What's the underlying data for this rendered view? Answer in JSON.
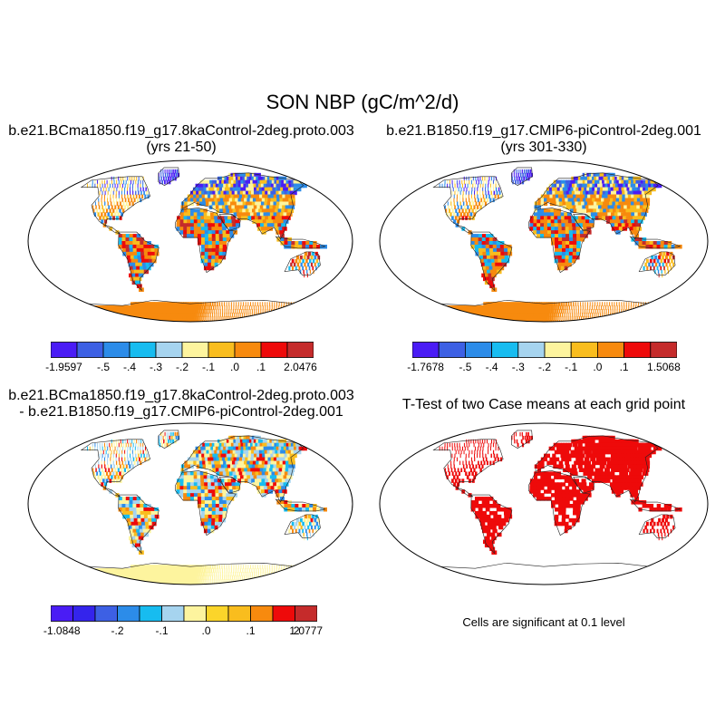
{
  "chart_data": {
    "type": "heatmap",
    "title": "SON NBP (gC/m^2/d)",
    "projection": "Robinson",
    "panels": [
      {
        "id": "case1",
        "title_lines": [
          "b.e21.BCma1850.f19_g17.8kaControl-2deg.proto.003",
          "(yrs 21-50)"
        ],
        "colorbar": {
          "colors": [
            "#4a1cf5",
            "#3d60e4",
            "#2c8ce9",
            "#17bcf0",
            "#a6d4ef",
            "#fdf49e",
            "#f9bd1e",
            "#f78a0e",
            "#ee0a0a",
            "#c52b2b"
          ],
          "labels": [
            "-1.9597",
            "-.5",
            "-.4",
            "-.3",
            "-.2",
            "-.1",
            ".0",
            ".1",
            "2.0476"
          ],
          "min": -1.9597,
          "max": 2.0476
        }
      },
      {
        "id": "case2",
        "title_lines": [
          "b.e21.B1850.f19_g17.CMIP6-piControl-2deg.001",
          "(yrs 301-330)"
        ],
        "colorbar": {
          "colors": [
            "#4a1cf5",
            "#3d60e4",
            "#2c8ce9",
            "#17bcf0",
            "#a6d4ef",
            "#fdf49e",
            "#f9bd1e",
            "#f78a0e",
            "#ee0a0a",
            "#c52b2b"
          ],
          "labels": [
            "-1.7678",
            "-.5",
            "-.4",
            "-.3",
            "-.2",
            "-.1",
            ".0",
            ".1",
            "1.5068"
          ],
          "min": -1.7678,
          "max": 1.5068
        }
      },
      {
        "id": "difference",
        "title_lines": [
          "b.e21.BCma1850.f19_g17.8kaControl-2deg.proto.003",
          "- b.e21.B1850.f19_g17.CMIP6-piControl-2deg.001"
        ],
        "colorbar": {
          "colors": [
            "#4a1cf5",
            "#3424ec",
            "#3d60e4",
            "#2c8ce9",
            "#17bcf0",
            "#a6d4ef",
            "#fdf49e",
            "#fbd52a",
            "#f9bd1e",
            "#f78a0e",
            "#ee0a0a",
            "#c52b2b"
          ],
          "labels": [
            "-1.0848",
            "-.2",
            "-.1",
            ".0",
            ".1",
            ".2",
            "1.0777"
          ],
          "min": -1.0848,
          "max": 1.0777
        }
      },
      {
        "id": "ttest",
        "title_lines": [
          "T-Test of two Case means at each grid point"
        ],
        "note": "Cells are significant at 0.1 level",
        "significant_color": "#ee0a0a"
      }
    ]
  }
}
